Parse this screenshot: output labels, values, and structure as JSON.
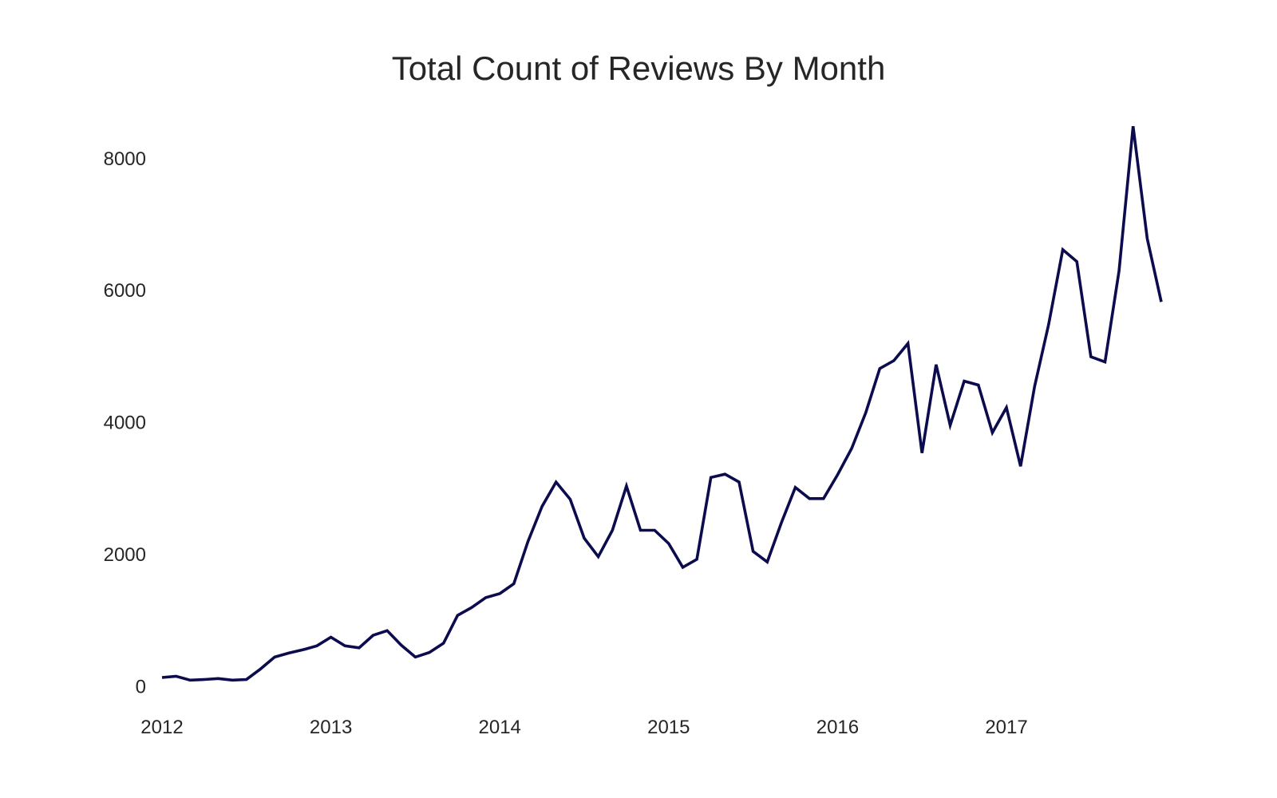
{
  "chart_data": {
    "type": "line",
    "title": "Total Count of Reviews By Month",
    "xlabel": "",
    "ylabel": "",
    "grid": false,
    "xlim": [
      "2012-01",
      "2017-12"
    ],
    "ylim": [
      -150,
      8650
    ],
    "x_ticks": [
      "2012",
      "2013",
      "2014",
      "2015",
      "2016",
      "2017"
    ],
    "y_ticks": [
      0,
      2000,
      4000,
      6000,
      8000
    ],
    "line_color": "#0b0b4d",
    "series": [
      {
        "x": [
          "2012-01",
          "2012-02",
          "2012-03",
          "2012-04",
          "2012-05",
          "2012-06",
          "2012-07",
          "2012-08",
          "2012-09",
          "2012-10",
          "2012-11",
          "2012-12",
          "2013-01",
          "2013-02",
          "2013-03",
          "2013-04",
          "2013-05",
          "2013-06",
          "2013-07",
          "2013-08",
          "2013-09",
          "2013-10",
          "2013-11",
          "2013-12",
          "2014-01",
          "2014-02",
          "2014-03",
          "2014-04",
          "2014-05",
          "2014-06",
          "2014-07",
          "2014-08",
          "2014-09",
          "2014-10",
          "2014-11",
          "2014-12",
          "2015-01",
          "2015-02",
          "2015-03",
          "2015-04",
          "2015-05",
          "2015-06",
          "2015-07",
          "2015-08",
          "2015-09",
          "2015-10",
          "2015-11",
          "2015-12",
          "2016-01",
          "2016-02",
          "2016-03",
          "2016-04",
          "2016-05",
          "2016-06",
          "2016-07",
          "2016-08",
          "2016-09",
          "2016-10",
          "2016-11",
          "2016-12",
          "2017-01",
          "2017-02",
          "2017-03",
          "2017-04",
          "2017-05",
          "2017-06",
          "2017-07",
          "2017-08",
          "2017-09",
          "2017-10",
          "2017-11",
          "2017-12"
        ],
        "values": [
          140,
          160,
          100,
          110,
          125,
          100,
          110,
          270,
          450,
          510,
          560,
          620,
          750,
          620,
          590,
          780,
          850,
          630,
          450,
          520,
          660,
          1080,
          1200,
          1350,
          1410,
          1560,
          2200,
          2730,
          3100,
          2840,
          2250,
          1970,
          2370,
          3040,
          2370,
          2370,
          2170,
          1810,
          1930,
          3170,
          3220,
          3100,
          2050,
          1890,
          2480,
          3020,
          2850,
          2850,
          3210,
          3610,
          4150,
          4820,
          4940,
          5200,
          3540,
          4880,
          3960,
          4630,
          4570,
          3850,
          4230,
          3340,
          4550,
          5490,
          6620,
          6440,
          5000,
          4920,
          6300,
          8490,
          6790,
          5830
        ]
      }
    ]
  }
}
